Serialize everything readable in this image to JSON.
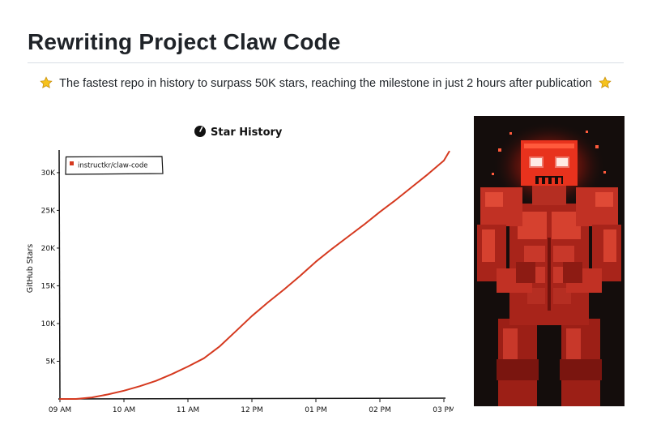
{
  "page": {
    "title": "Rewriting Project Claw Code",
    "tagline": "The fastest repo in history to surpass 50K stars, reaching the milestone in just 2 hours after publication",
    "tagline_icon": "star-emoji-icon"
  },
  "colors": {
    "accent": "#d5391f",
    "text": "#1f2328",
    "divider": "#d8dee4",
    "art_background": "#140d0c"
  },
  "chart_data": {
    "type": "line",
    "title": "Star History",
    "title_icon": "clock-icon",
    "xlabel": "",
    "ylabel": "GitHub Stars",
    "x_ticks": [
      "09 AM",
      "10 AM",
      "11 AM",
      "12 PM",
      "01 PM",
      "02 PM",
      "03 PM"
    ],
    "y_ticks": [
      "5K",
      "10K",
      "15K",
      "20K",
      "25K",
      "30K"
    ],
    "ylim": [
      0,
      33000
    ],
    "xlim": [
      "09 AM",
      "03 PM"
    ],
    "legend": {
      "placement": "top-left",
      "entries": [
        "instructkr/claw-code"
      ]
    },
    "grid": false,
    "series": [
      {
        "name": "instructkr/claw-code",
        "color": "#d5391f",
        "x": [
          "09:00",
          "09:15",
          "09:30",
          "09:45",
          "10:00",
          "10:15",
          "10:30",
          "10:45",
          "11:00",
          "11:15",
          "11:30",
          "11:45",
          "12:00",
          "12:15",
          "12:30",
          "12:45",
          "13:00",
          "13:15",
          "13:30",
          "13:45",
          "14:00",
          "14:15",
          "14:30",
          "14:45",
          "15:00",
          "15:05"
        ],
        "values": [
          0,
          0,
          200,
          600,
          1100,
          1700,
          2400,
          3300,
          4300,
          5400,
          7000,
          9000,
          11000,
          12800,
          14500,
          16300,
          18200,
          19900,
          21500,
          23100,
          24800,
          26400,
          28100,
          29800,
          31600,
          32800
        ]
      }
    ]
  },
  "illustration": {
    "subject": "pixel-art red muscular robot"
  }
}
